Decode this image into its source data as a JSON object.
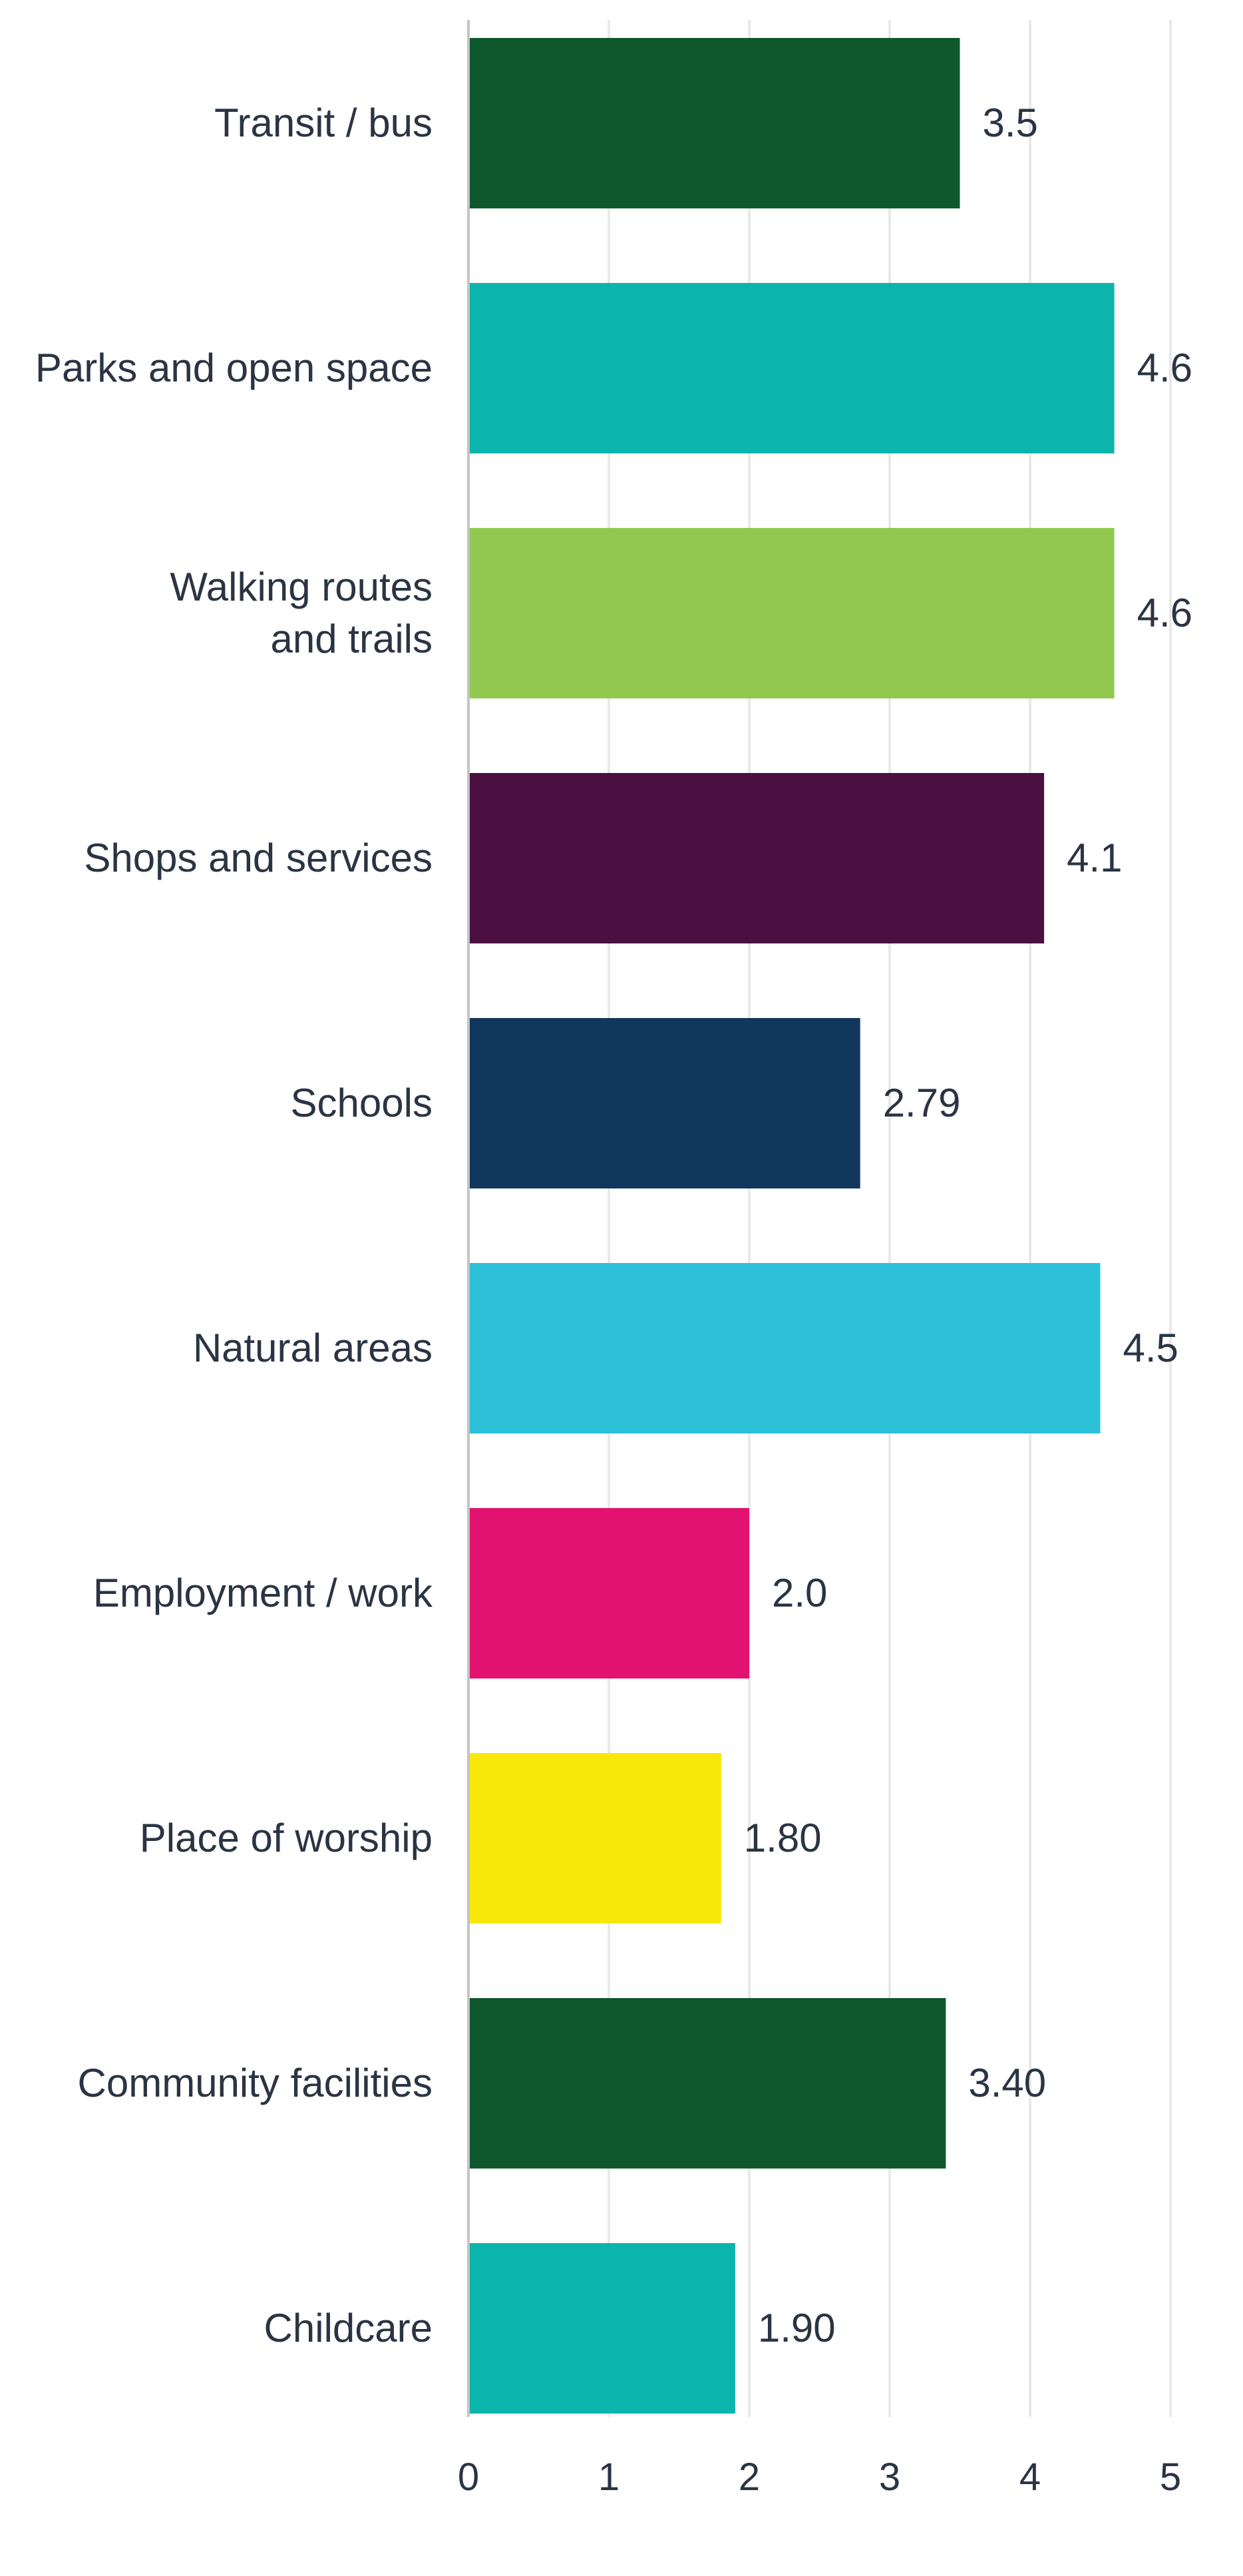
{
  "chart_data": {
    "type": "bar",
    "orientation": "horizontal",
    "categories": [
      "Transit / bus",
      "Parks and open space",
      "Walking routes and trails",
      "Shops and services",
      "Schools",
      "Natural areas",
      "Employment / work",
      "Place of worship",
      "Community facilities",
      "Childcare"
    ],
    "category_lines": [
      [
        "Transit / bus"
      ],
      [
        "Parks and open space"
      ],
      [
        "Walking routes",
        "and trails"
      ],
      [
        "Shops and services"
      ],
      [
        "Schools"
      ],
      [
        "Natural areas"
      ],
      [
        "Employment / work"
      ],
      [
        "Place of worship"
      ],
      [
        "Community facilities"
      ],
      [
        "Childcare"
      ]
    ],
    "values": [
      3.5,
      4.6,
      4.6,
      4.1,
      2.79,
      4.5,
      2.0,
      1.8,
      3.4,
      1.9
    ],
    "value_labels": [
      "3.5",
      "4.6",
      "4.6",
      "4.1",
      "2.79",
      "4.5",
      "2.0",
      "1.80",
      "3.40",
      "1.90"
    ],
    "colors": [
      "#0f572d",
      "#0bb5ab",
      "#91c951",
      "#4b0f41",
      "#12375c",
      "#2bc0d8",
      "#e11270",
      "#f7e70b",
      "#0f572d",
      "#0bb5ab"
    ],
    "xlim": [
      0,
      5
    ],
    "x_ticks": [
      "0",
      "1",
      "2",
      "3",
      "4",
      "5"
    ],
    "grid": true,
    "title": "",
    "xlabel": "",
    "ylabel": ""
  }
}
